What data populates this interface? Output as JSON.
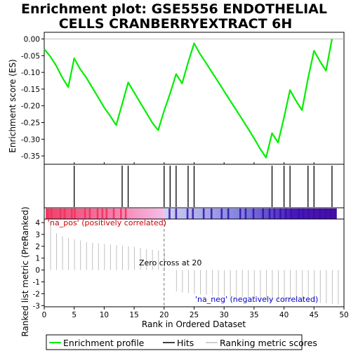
{
  "chart_data": {
    "type": "line",
    "title_line1": "Enrichment plot: GSE5556 ENDOTHELIAL",
    "title_line2": "CELLS CRANBERRYEXTRACT 6H",
    "xlabel": "Rank in Ordered Dataset",
    "es_ylabel": "Enrichment score (ES)",
    "rank_ylabel": "Ranked list metric (PreRanked)",
    "xlim": [
      0,
      50
    ],
    "x_ticks": [
      "0",
      "5",
      "10",
      "15",
      "20",
      "25",
      "30",
      "35",
      "40",
      "45",
      "50"
    ],
    "es_ylim": [
      -0.375,
      0.02
    ],
    "es_ticks": [
      "0.00",
      "-0.05",
      "-0.10",
      "-0.15",
      "-0.20",
      "-0.25",
      "-0.30",
      "-0.35"
    ],
    "rank_ylim": [
      -3.1,
      4.3
    ],
    "rank_ticks": [
      "4",
      "3",
      "2",
      "1",
      "0",
      "-1",
      "-2",
      "-3"
    ],
    "es_curve": {
      "x": [
        0,
        1,
        2,
        3,
        4,
        5,
        6,
        7,
        8,
        9,
        10,
        11,
        12,
        13,
        14,
        15,
        16,
        17,
        18,
        19,
        20,
        21,
        22,
        23,
        24,
        25,
        26,
        27,
        28,
        29,
        30,
        31,
        32,
        33,
        34,
        35,
        36,
        37,
        38,
        39,
        40,
        41,
        42,
        43,
        44,
        45,
        46,
        47,
        48
      ],
      "y": [
        -0.03,
        -0.052,
        -0.08,
        -0.115,
        -0.144,
        -0.058,
        -0.09,
        -0.115,
        -0.145,
        -0.175,
        -0.205,
        -0.23,
        -0.258,
        -0.195,
        -0.13,
        -0.16,
        -0.19,
        -0.22,
        -0.25,
        -0.273,
        -0.215,
        -0.163,
        -0.105,
        -0.133,
        -0.07,
        -0.013,
        -0.045,
        -0.072,
        -0.1,
        -0.128,
        -0.156,
        -0.184,
        -0.212,
        -0.24,
        -0.268,
        -0.297,
        -0.328,
        -0.355,
        -0.282,
        -0.31,
        -0.235,
        -0.153,
        -0.185,
        -0.213,
        -0.118,
        -0.035,
        -0.067,
        -0.095,
        0.0
      ]
    },
    "hits": [
      5,
      13,
      14,
      20,
      21,
      22,
      24,
      25,
      38,
      40,
      41,
      44,
      45,
      48
    ],
    "ranked_metric": {
      "x": [
        0,
        1,
        2,
        3,
        4,
        5,
        6,
        7,
        8,
        9,
        10,
        11,
        12,
        13,
        14,
        15,
        16,
        17,
        18,
        19,
        20,
        21,
        22,
        23,
        24,
        25,
        26,
        27,
        28,
        29,
        30,
        31,
        32,
        33,
        34,
        35,
        36,
        37,
        38,
        39,
        40,
        41,
        42,
        43,
        44,
        45,
        46,
        47,
        48
      ],
      "values": [
        3.8,
        3.1,
        2.85,
        2.7,
        2.6,
        2.5,
        2.35,
        2.3,
        2.25,
        2.2,
        2.15,
        2.1,
        2.05,
        2.0,
        1.95,
        1.85,
        1.75,
        1.7,
        1.65,
        1.6,
        0.0,
        -1.8,
        -1.9,
        -1.95,
        -2.0,
        -2.05,
        -2.1,
        -2.15,
        -2.2,
        -2.22,
        -2.25,
        -2.28,
        -2.3,
        -2.35,
        -2.4,
        -2.45,
        -2.5,
        -2.55,
        -2.6,
        -2.62,
        -2.65,
        -2.68,
        -2.7,
        -2.72,
        -2.75,
        -2.78,
        -2.8,
        -2.85,
        -2.9
      ]
    },
    "zero_cross_rank": 20,
    "zero_cross_label": "Zero cross at 20",
    "pos_label": "'na_pos' (positively correlated)",
    "neg_label": "'na_neg' (negatively correlated)",
    "legend": {
      "placement": "bottom",
      "items": [
        "Enrichment profile",
        "Hits",
        "Ranking metric scores"
      ]
    },
    "colors": {
      "es_line": "#00ee00",
      "hits": "#000000",
      "metric": "#c0c0c0",
      "pos_text": "#cc0000",
      "neg_text": "#0000cc",
      "strip_pos_light": "#f7c0e6",
      "strip_neg_light": "#b8b8ee",
      "strip_pos_dark": "#f0305a",
      "strip_neg_dark": "#3010b0"
    },
    "strip_dark_ranks": [
      0.6,
      1.2,
      2.7,
      3.4,
      4.6,
      5.1,
      6.8,
      7.6,
      8.9,
      9.7,
      10.4,
      11.6,
      12.8,
      13.6,
      20.9,
      22.0,
      23.9,
      24.8,
      26.6,
      27.9,
      29.6,
      30.7,
      32.7,
      33.6,
      34.9,
      36.5,
      37.6,
      38.4,
      39.4,
      40.3,
      41.2,
      42.5,
      43.2,
      44.1,
      45.0,
      46.0,
      46.9,
      47.8,
      48.6
    ]
  }
}
